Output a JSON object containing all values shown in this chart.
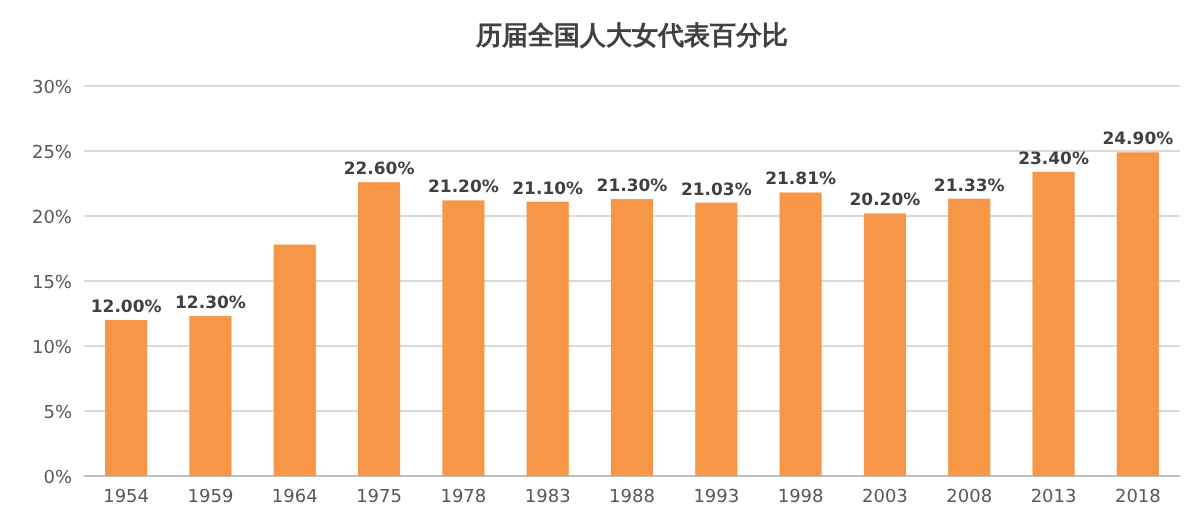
{
  "chart_data": {
    "type": "bar",
    "title": "历届全国人大女代表百分比",
    "categories": [
      "1954",
      "1959",
      "1964",
      "1975",
      "1978",
      "1983",
      "1988",
      "1993",
      "1998",
      "2003",
      "2008",
      "2013",
      "2018"
    ],
    "values": [
      12.0,
      12.3,
      17.8,
      22.6,
      21.2,
      21.1,
      21.3,
      21.03,
      21.81,
      20.2,
      21.33,
      23.4,
      24.9
    ],
    "value_labels": [
      "12.00%",
      "12.30%",
      null,
      "22.60%",
      "21.20%",
      "21.10%",
      "21.30%",
      "21.03%",
      "21.81%",
      "20.20%",
      "21.33%",
      "23.40%",
      "24.90%"
    ],
    "color": "#f79646",
    "ylim": [
      0,
      30
    ],
    "yticks": [
      {
        "value": 0,
        "label": "0%"
      },
      {
        "value": 5,
        "label": "5%"
      },
      {
        "value": 10,
        "label": "10%"
      },
      {
        "value": 15,
        "label": "15%"
      },
      {
        "value": 20,
        "label": "20%"
      },
      {
        "value": 25,
        "label": "25%"
      },
      {
        "value": 30,
        "label": "30%"
      }
    ],
    "grid": "y"
  }
}
